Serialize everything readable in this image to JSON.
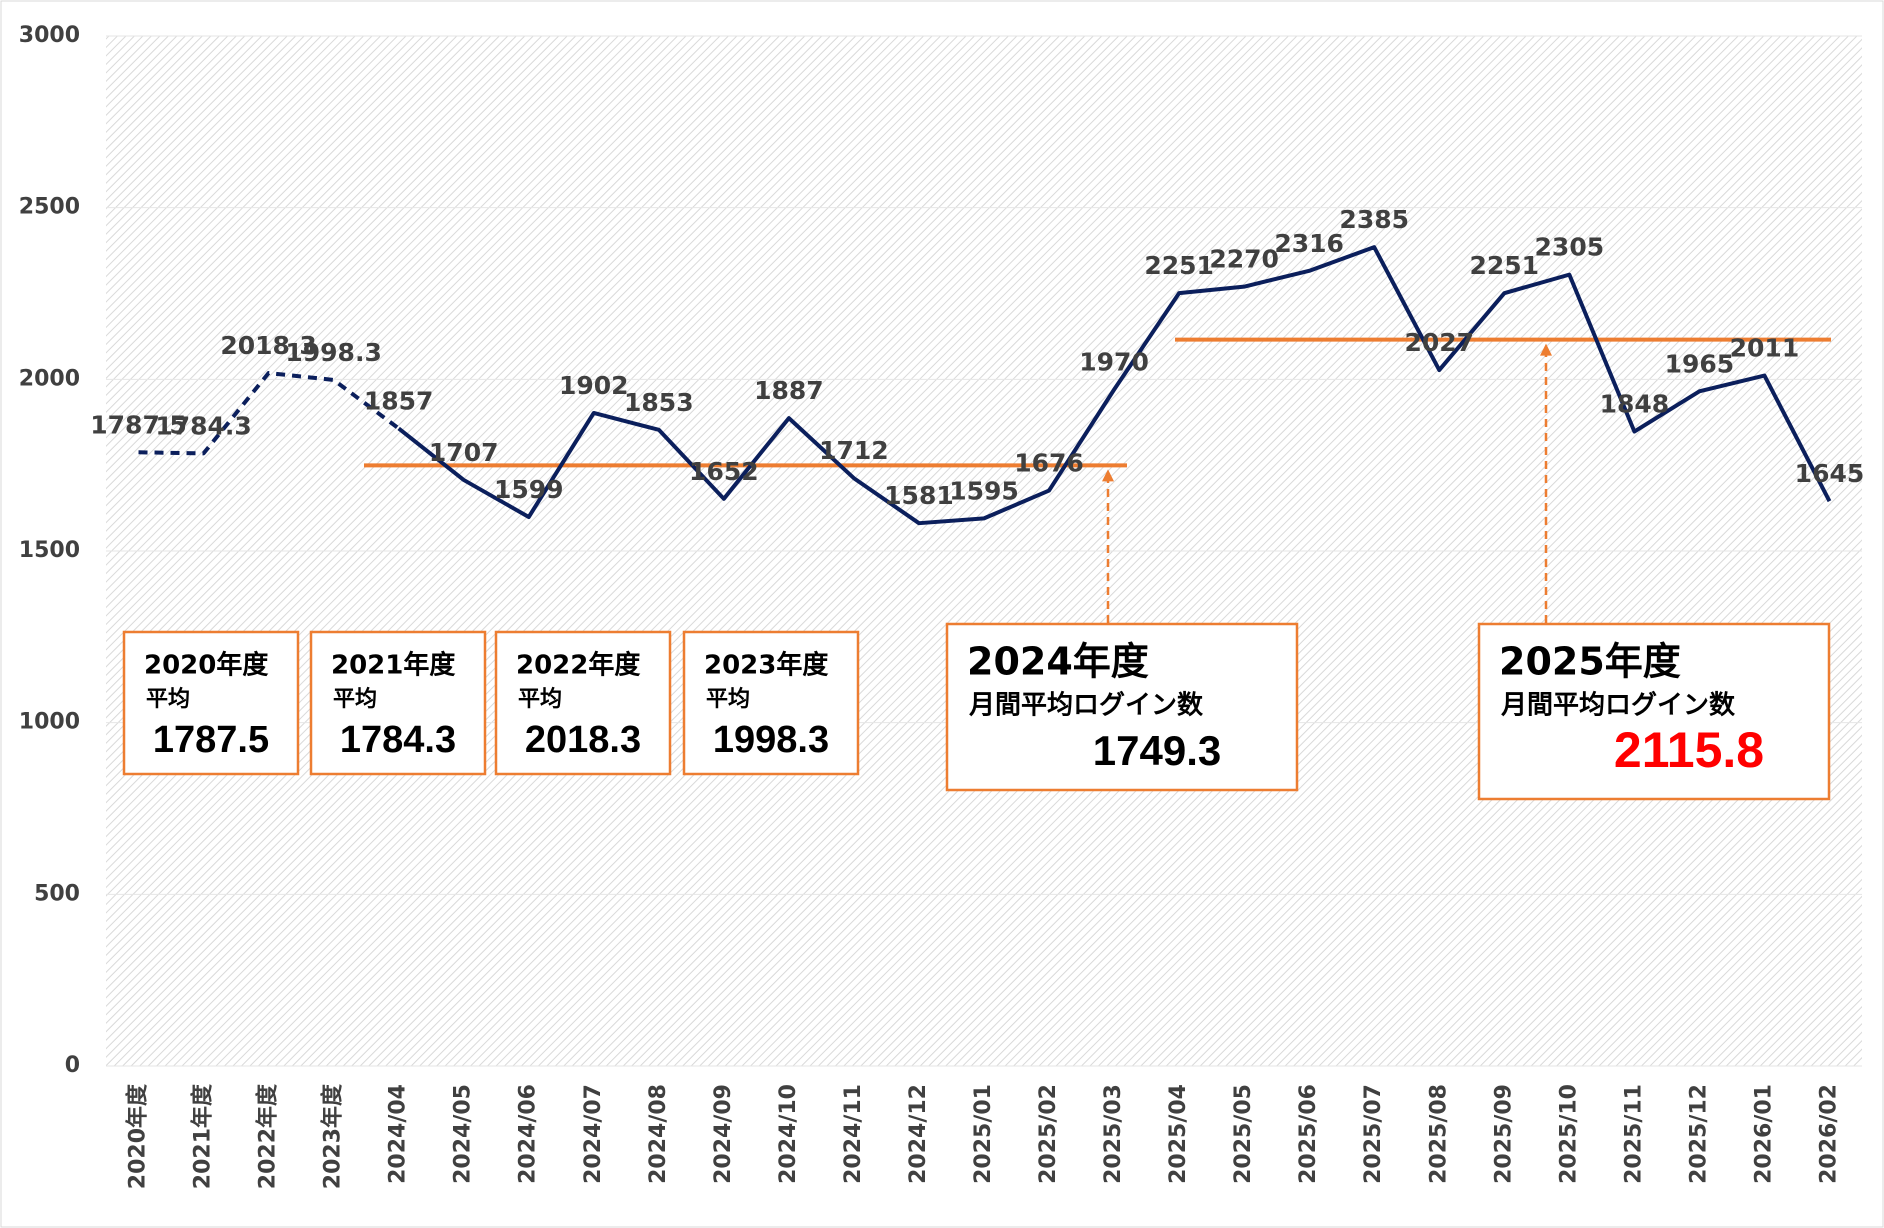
{
  "chart_data": {
    "type": "line",
    "categories": [
      "2020年度",
      "2021年度",
      "2022年度",
      "2023年度",
      "2024/04",
      "2024/05",
      "2024/06",
      "2024/07",
      "2024/08",
      "2024/09",
      "2024/10",
      "2024/11",
      "2024/12",
      "2025/01",
      "2025/02",
      "2025/03",
      "2025/04",
      "2025/05",
      "2025/06",
      "2025/07",
      "2025/08",
      "2025/09",
      "2025/10",
      "2025/11",
      "2025/12",
      "2026/01",
      "2026/02"
    ],
    "series": [
      {
        "color": "#0b1f5c",
        "values": [
          1787.5,
          1784.3,
          2018.3,
          1998.3,
          1857,
          1707,
          1599,
          1902,
          1853,
          1652,
          1887,
          1712,
          1581,
          1595,
          1676,
          1970,
          2251,
          2270,
          2316,
          2385,
          2027,
          2251,
          2305,
          1848,
          1965,
          2011,
          1645
        ]
      }
    ],
    "dashed_until_index": 4,
    "ylim": [
      0,
      3000
    ],
    "yticks": [
      0,
      500,
      1000,
      1500,
      2000,
      2500,
      3000
    ],
    "grid": true,
    "average_color": "#ed7d31",
    "annotations": [
      {
        "year": "2020年度",
        "label": "平均",
        "value": 1787.5
      },
      {
        "year": "2021年度",
        "label": "平均",
        "value": 1784.3
      },
      {
        "year": "2022年度",
        "label": "平均",
        "value": 2018.3
      },
      {
        "year": "2023年度",
        "label": "平均",
        "value": 1998.3
      },
      {
        "year": "2024年度",
        "label": "月間平均ログイン数",
        "value": 1749.3
      },
      {
        "year": "2025年度",
        "label": "月間平均ログイン数",
        "value": 2115.8,
        "value_color": "#ff0000"
      }
    ]
  }
}
